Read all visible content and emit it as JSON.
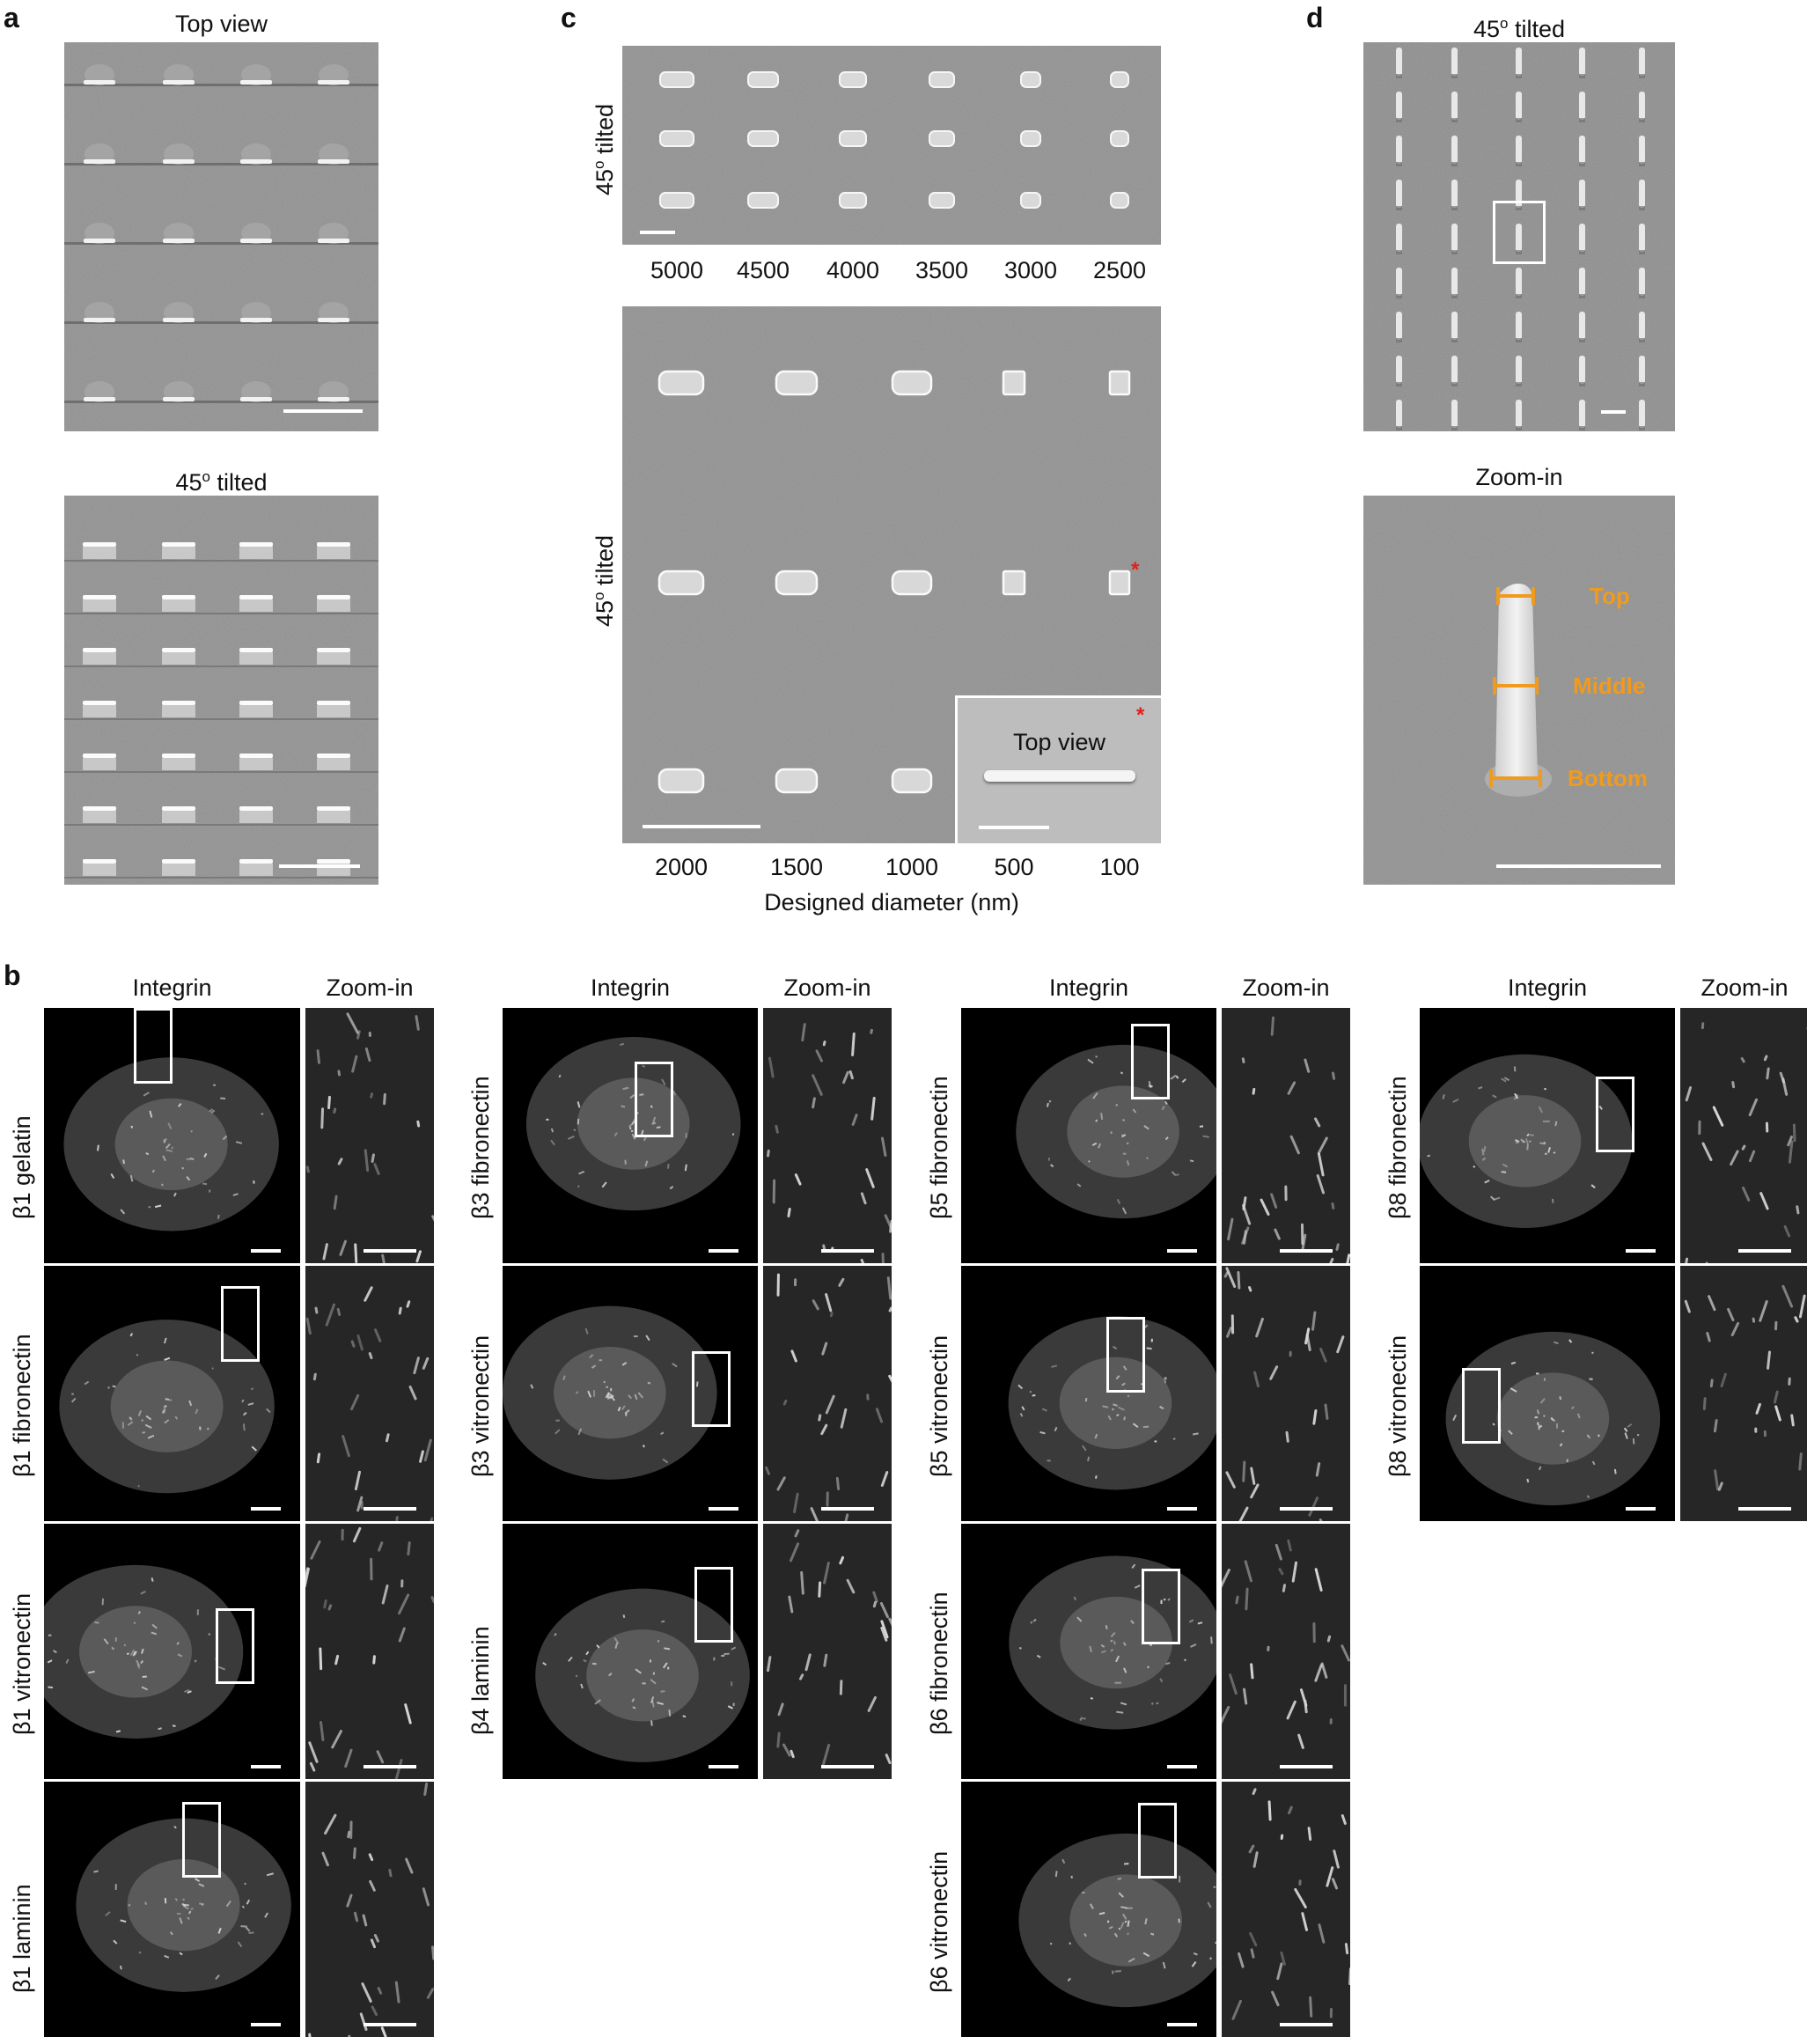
{
  "panel_labels": {
    "a": "a",
    "b": "b",
    "c": "c",
    "d": "d"
  },
  "panel_a": {
    "top_title": "Top view",
    "bottom_title_main": "45",
    "bottom_title_sup": "o",
    "bottom_title_rest": " tilted"
  },
  "panel_c": {
    "row1_label_main": "45",
    "row1_label_sup": "o",
    "row1_label_rest": " tilted",
    "row2_label_main": "45",
    "row2_label_sup": "o",
    "row2_label_rest": " tilted",
    "row1_ticks": [
      "5000",
      "4500",
      "4000",
      "3500",
      "3000",
      "2500"
    ],
    "row2_ticks": [
      "2000",
      "1500",
      "1000",
      "500",
      "100"
    ],
    "xlabel": "Designed diameter (nm)",
    "inset_title": "Top view",
    "star": "*"
  },
  "panel_d": {
    "top_title_main": "45",
    "top_title_sup": "o",
    "top_title_rest": " tilted",
    "bottom_title": "Zoom-in",
    "measure_labels": [
      "Top",
      "Middle",
      "Bottom"
    ],
    "measure_color": "#f09a1e"
  },
  "panel_b": {
    "col_integrin": "Integrin",
    "col_zoom": "Zoom-in",
    "groups": [
      {
        "rows": [
          "β1 gelatin",
          "β1 fibronectin",
          "β1 vitronectin",
          "β1 laminin"
        ]
      },
      {
        "rows": [
          "β3 fibronectin",
          "β3 vitronectin",
          "β4 laminin"
        ]
      },
      {
        "rows": [
          "β5 fibronectin",
          "β5 vitronectin",
          "β6 fibronectin",
          "β6 vitronectin"
        ]
      },
      {
        "rows": [
          "β8 fibronectin",
          "β8 vitronectin"
        ]
      }
    ]
  }
}
